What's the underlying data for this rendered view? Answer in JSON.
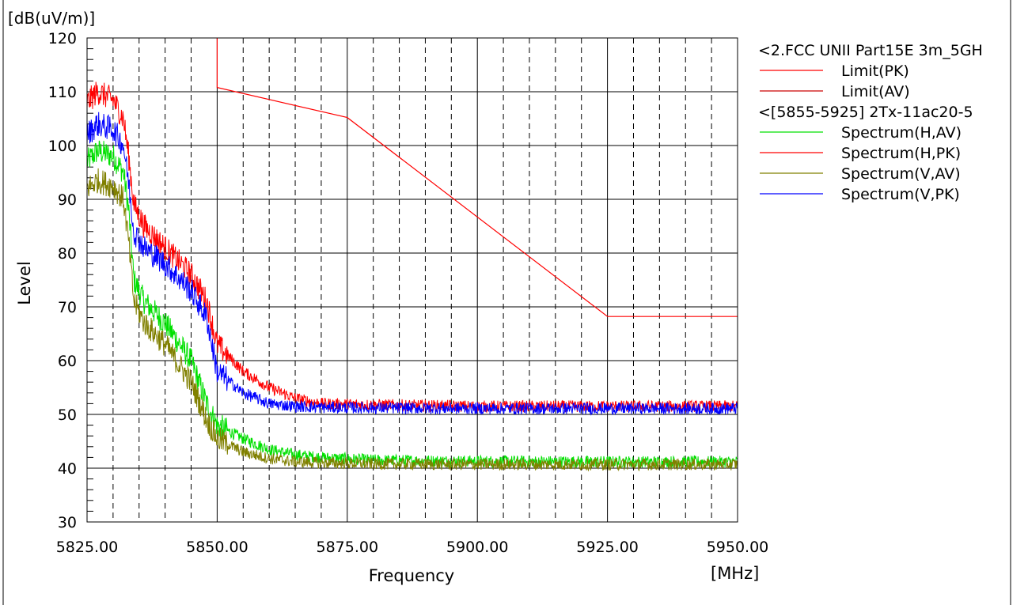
{
  "chart_data": {
    "type": "line",
    "unit_label": "[dB(uV/m)]",
    "xlabel": "Frequency",
    "ylabel": "Level",
    "x_unit_label": "[MHz]",
    "xlim": [
      5825,
      5950
    ],
    "ylim": [
      30,
      120
    ],
    "x_tick_labels": [
      "5825.00",
      "5850.00",
      "5875.00",
      "5900.00",
      "5925.00",
      "5950.00"
    ],
    "y_tick_labels": [
      "30",
      "40",
      "50",
      "60",
      "70",
      "80",
      "90",
      "100",
      "110",
      "120"
    ],
    "grid": true,
    "legend_placement": "right",
    "legend_groups": [
      {
        "title": "<2.FCC UNII Part15E 3m_5GH",
        "entries": [
          "Limit(PK)",
          "Limit(AV)"
        ]
      },
      {
        "title": "<[5855-5925] 2Tx-11ac20-5",
        "entries": [
          "Spectrum(H,AV)",
          "Spectrum(H,PK)",
          "Spectrum(V,AV)",
          "Spectrum(V,PK)"
        ]
      }
    ],
    "series": [
      {
        "name": "Limit(PK)",
        "color": "#ff0000",
        "x": [
          5850,
          5850,
          5875,
          5925,
          5950
        ],
        "y": [
          120,
          110.8,
          105.2,
          68.2,
          68.2
        ]
      },
      {
        "name": "Spectrum(H,AV)",
        "color": "#00e000",
        "x": [
          5825,
          5827,
          5830,
          5832,
          5833,
          5834,
          5836,
          5840,
          5845,
          5848,
          5850,
          5855,
          5860,
          5865,
          5870,
          5880,
          5900,
          5925,
          5950
        ],
        "y": [
          97,
          99,
          98,
          95,
          88,
          75,
          71,
          67,
          60,
          52,
          48,
          45.5,
          43.5,
          42.5,
          42,
          41.5,
          41.3,
          41.2,
          41.2
        ]
      },
      {
        "name": "Spectrum(H,PK)",
        "color": "#ff0000",
        "x": [
          5825,
          5827,
          5830,
          5832,
          5833,
          5834,
          5836,
          5840,
          5845,
          5848,
          5850,
          5855,
          5860,
          5865,
          5870,
          5880,
          5900,
          5925,
          5950
        ],
        "y": [
          108,
          110,
          108.5,
          105,
          98,
          89,
          85,
          81,
          76,
          71,
          63,
          58,
          55,
          53,
          52,
          51.8,
          51.5,
          51.5,
          51.5
        ]
      },
      {
        "name": "Spectrum(V,AV)",
        "color": "#808000",
        "x": [
          5825,
          5827,
          5830,
          5832,
          5833,
          5834,
          5836,
          5840,
          5845,
          5848,
          5850,
          5855,
          5860,
          5865,
          5870,
          5880,
          5900,
          5925,
          5950
        ],
        "y": [
          92,
          93.5,
          92.5,
          90,
          82,
          71,
          67,
          63,
          56,
          49,
          45.5,
          43,
          41.8,
          41.2,
          41,
          40.8,
          40.7,
          40.7,
          40.7
        ]
      },
      {
        "name": "Spectrum(V,PK)",
        "color": "#0000ff",
        "x": [
          5825,
          5827,
          5830,
          5832,
          5833,
          5834,
          5836,
          5840,
          5845,
          5848,
          5850,
          5855,
          5860,
          5865,
          5870,
          5880,
          5900,
          5925,
          5950
        ],
        "y": [
          102,
          104,
          103,
          100,
          93,
          84,
          81,
          78,
          73,
          68,
          58,
          54,
          52,
          51.5,
          51.3,
          51.2,
          51.1,
          51.1,
          51.1
        ]
      }
    ]
  },
  "legend_colors": {
    "Limit(PK)": "#ff0000",
    "Limit(AV)": "#cc0000",
    "Spectrum(H,AV)": "#00e000",
    "Spectrum(H,PK)": "#ff0000",
    "Spectrum(V,AV)": "#808000",
    "Spectrum(V,PK)": "#0000ff"
  }
}
